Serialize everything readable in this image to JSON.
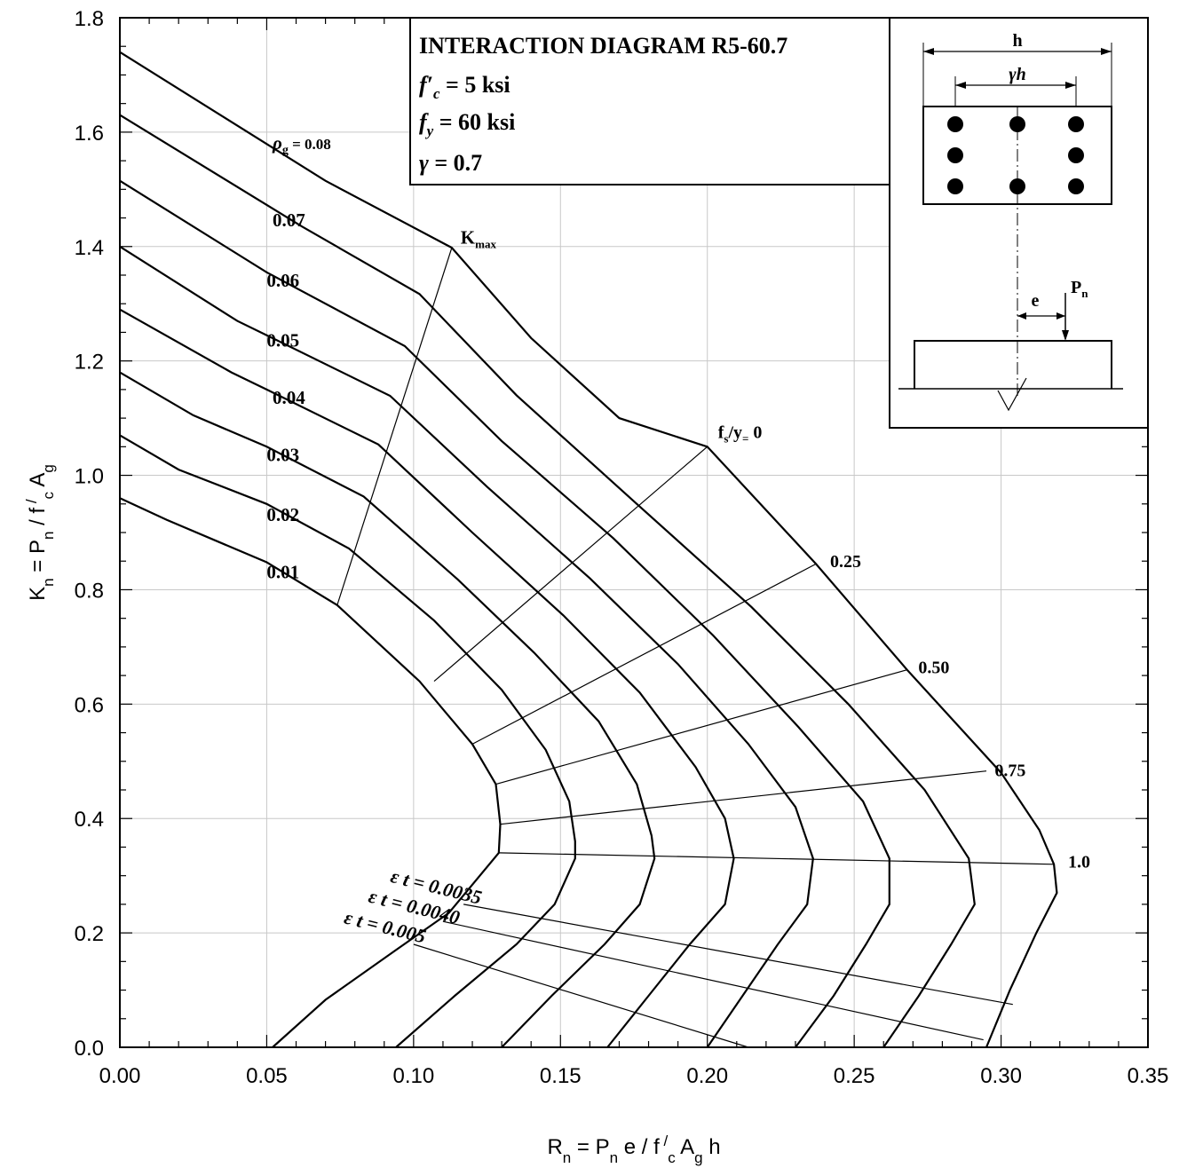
{
  "chart_data": {
    "type": "line",
    "title": "INTERACTION DIAGRAM R5-60.7",
    "params": {
      "fc": "= 5 ksi",
      "fy": "= 60 ksi",
      "gamma": "= 0.7"
    },
    "xlabel": "R = P e / f c A h",
    "ylabel": "K = P / f c A",
    "xlim": [
      0,
      0.35
    ],
    "ylim": [
      0,
      1.8
    ],
    "grid": true,
    "x_ticks": [
      "0.00",
      "0.05",
      "0.10",
      "0.15",
      "0.20",
      "0.25",
      "0.30",
      "0.35"
    ],
    "y_ticks": [
      "0.0",
      "0.2",
      "0.4",
      "0.6",
      "0.8",
      "1.0",
      "1.2",
      "1.4",
      "1.6",
      "1.8"
    ],
    "series": [
      {
        "name": "0.01",
        "points": [
          [
            0,
            0.96
          ],
          [
            0.016,
            0.922
          ],
          [
            0.05,
            0.848
          ],
          [
            0.074,
            0.773
          ],
          [
            0.102,
            0.64
          ],
          [
            0.12,
            0.53
          ],
          [
            0.128,
            0.46
          ],
          [
            0.1295,
            0.39
          ],
          [
            0.129,
            0.34
          ],
          [
            0.112,
            0.235
          ],
          [
            0.094,
            0.17
          ],
          [
            0.07,
            0.083
          ],
          [
            0.052,
            0
          ]
        ]
      },
      {
        "name": "0.02",
        "points": [
          [
            0,
            1.07
          ],
          [
            0.02,
            1.01
          ],
          [
            0.05,
            0.95
          ],
          [
            0.078,
            0.872
          ],
          [
            0.107,
            0.746
          ],
          [
            0.13,
            0.625
          ],
          [
            0.145,
            0.52
          ],
          [
            0.153,
            0.43
          ],
          [
            0.155,
            0.36
          ],
          [
            0.155,
            0.33
          ],
          [
            0.148,
            0.25
          ],
          [
            0.135,
            0.18
          ],
          [
            0.114,
            0.09
          ],
          [
            0.094,
            0
          ]
        ]
      },
      {
        "name": "0.03",
        "points": [
          [
            0,
            1.18
          ],
          [
            0.025,
            1.105
          ],
          [
            0.05,
            1.05
          ],
          [
            0.083,
            0.963
          ],
          [
            0.115,
            0.818
          ],
          [
            0.141,
            0.69
          ],
          [
            0.163,
            0.57
          ],
          [
            0.176,
            0.46
          ],
          [
            0.181,
            0.37
          ],
          [
            0.182,
            0.33
          ],
          [
            0.177,
            0.25
          ],
          [
            0.165,
            0.18
          ],
          [
            0.147,
            0.09
          ],
          [
            0.13,
            0
          ]
        ]
      },
      {
        "name": "0.04",
        "points": [
          [
            0,
            1.29
          ],
          [
            0.038,
            1.18
          ],
          [
            0.05,
            1.15
          ],
          [
            0.088,
            1.054
          ],
          [
            0.12,
            0.9
          ],
          [
            0.151,
            0.755
          ],
          [
            0.177,
            0.62
          ],
          [
            0.196,
            0.49
          ],
          [
            0.206,
            0.4
          ],
          [
            0.209,
            0.33
          ],
          [
            0.206,
            0.25
          ],
          [
            0.194,
            0.18
          ],
          [
            0.18,
            0.09
          ],
          [
            0.166,
            0
          ]
        ]
      },
      {
        "name": "0.05",
        "points": [
          [
            0,
            1.4
          ],
          [
            0.04,
            1.27
          ],
          [
            0.05,
            1.245
          ],
          [
            0.092,
            1.139
          ],
          [
            0.125,
            0.98
          ],
          [
            0.16,
            0.82
          ],
          [
            0.19,
            0.67
          ],
          [
            0.214,
            0.53
          ],
          [
            0.23,
            0.42
          ],
          [
            0.236,
            0.33
          ],
          [
            0.234,
            0.25
          ],
          [
            0.224,
            0.18
          ],
          [
            0.212,
            0.09
          ],
          [
            0.2,
            0
          ]
        ]
      },
      {
        "name": "0.06",
        "points": [
          [
            0,
            1.515
          ],
          [
            0.05,
            1.355
          ],
          [
            0.097,
            1.226
          ],
          [
            0.13,
            1.06
          ],
          [
            0.168,
            0.89
          ],
          [
            0.202,
            0.72
          ],
          [
            0.231,
            0.56
          ],
          [
            0.253,
            0.43
          ],
          [
            0.262,
            0.33
          ],
          [
            0.262,
            0.25
          ],
          [
            0.254,
            0.18
          ],
          [
            0.243,
            0.09
          ],
          [
            0.23,
            0
          ]
        ]
      },
      {
        "name": "0.07",
        "points": [
          [
            0,
            1.63
          ],
          [
            0.062,
            1.435
          ],
          [
            0.102,
            1.317
          ],
          [
            0.135,
            1.14
          ],
          [
            0.176,
            0.95
          ],
          [
            0.215,
            0.77
          ],
          [
            0.248,
            0.6
          ],
          [
            0.274,
            0.45
          ],
          [
            0.289,
            0.33
          ],
          [
            0.291,
            0.25
          ],
          [
            0.283,
            0.18
          ],
          [
            0.272,
            0.09
          ],
          [
            0.26,
            0
          ]
        ]
      },
      {
        "name": "0.08",
        "points": [
          [
            0,
            1.74
          ],
          [
            0.07,
            1.515
          ],
          [
            0.113,
            1.398
          ],
          [
            0.14,
            1.24
          ],
          [
            0.17,
            1.1
          ],
          [
            0.2,
            1.05
          ],
          [
            0.237,
            0.845
          ],
          [
            0.268,
            0.66
          ],
          [
            0.3,
            0.48
          ],
          [
            0.313,
            0.38
          ],
          [
            0.318,
            0.32
          ],
          [
            0.319,
            0.27
          ],
          [
            0.312,
            0.2
          ],
          [
            0.303,
            0.1
          ],
          [
            0.295,
            0
          ]
        ]
      }
    ],
    "strain_lines": [
      {
        "label": "f s/f y = 0",
        "points": [
          [
            0.107,
            0.64
          ],
          [
            0.2,
            1.05
          ]
        ]
      },
      {
        "label": "0.25",
        "points": [
          [
            0.12,
            0.53
          ],
          [
            0.237,
            0.845
          ]
        ]
      },
      {
        "label": "0.50",
        "points": [
          [
            0.128,
            0.46
          ],
          [
            0.268,
            0.66
          ]
        ]
      },
      {
        "label": "0.75",
        "points": [
          [
            0.1295,
            0.39
          ],
          [
            0.295,
            0.483
          ]
        ]
      },
      {
        "label": "1.0",
        "points": [
          [
            0.129,
            0.34
          ],
          [
            0.318,
            0.32
          ]
        ]
      },
      {
        "label": "ε t = 0.0035",
        "points": [
          [
            0.117,
            0.25
          ],
          [
            0.304,
            0.075
          ]
        ]
      },
      {
        "label": "ε t = 0.0040",
        "points": [
          [
            0.11,
            0.22
          ],
          [
            0.294,
            0.013
          ]
        ]
      },
      {
        "label": "ε t = 0.005",
        "points": [
          [
            0.1,
            0.18
          ],
          [
            0.214,
            0
          ]
        ]
      }
    ],
    "kmax_line": {
      "label": "K max",
      "points": [
        [
          0.074,
          0.773
        ],
        [
          0.113,
          1.398
        ]
      ]
    },
    "annotations": {
      "rho_label": "ρ g = 0.08",
      "inset_h": "h",
      "inset_gamma_h": "γh",
      "inset_e": "e",
      "inset_pn": "P n"
    }
  }
}
